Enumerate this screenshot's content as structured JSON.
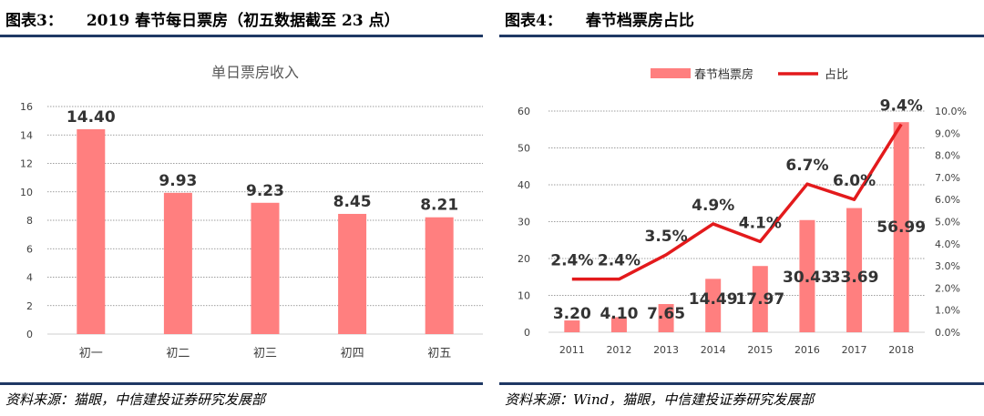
{
  "left": {
    "figure_number": "图表3：",
    "figure_title": "2019 春节每日票房（初五数据截至 23 点）",
    "source": "资料来源：猫眼，中信建投证券研究发展部"
  },
  "right": {
    "figure_number": "图表4：",
    "figure_title": "春节档票房占比",
    "source": "资料来源：Wind，猫眼，中信建投证券研究发展部"
  },
  "colors": {
    "bar": "#ff7f7f",
    "line": "#e31a1c",
    "rule": "#1f3864"
  },
  "chart_data": [
    {
      "type": "bar",
      "title": "单日票房收入",
      "categories": [
        "初一",
        "初二",
        "初三",
        "初四",
        "初五"
      ],
      "values": [
        14.4,
        9.93,
        9.23,
        8.45,
        8.21
      ],
      "value_labels": [
        "14.40",
        "9.93",
        "9.23",
        "8.45",
        "8.21"
      ],
      "ylim": [
        0,
        16
      ],
      "yticks": [
        0,
        2,
        4,
        6,
        8,
        10,
        12,
        14,
        16
      ],
      "grid": true
    },
    {
      "type": "bar",
      "categories": [
        "2011",
        "2012",
        "2013",
        "2014",
        "2015",
        "2016",
        "2017",
        "2018"
      ],
      "series": [
        {
          "name": "春节档票房",
          "type": "bar",
          "axis": "left",
          "values": [
            3.2,
            4.1,
            7.65,
            14.49,
            17.97,
            30.43,
            33.69,
            56.99
          ],
          "value_labels": [
            "3.20",
            "4.10",
            "7.65",
            "14.49",
            "17.97",
            "30.43",
            "33.69",
            "56.99"
          ]
        },
        {
          "name": "占比",
          "type": "line",
          "axis": "right",
          "values": [
            2.4,
            2.4,
            3.5,
            4.9,
            4.1,
            6.7,
            6.0,
            9.4
          ],
          "value_labels": [
            "2.4%",
            "2.4%",
            "3.5%",
            "4.9%",
            "4.1%",
            "6.7%",
            "6.0%",
            "9.4%"
          ]
        }
      ],
      "ylim": [
        0,
        60
      ],
      "yticks": [
        0,
        10,
        20,
        30,
        40,
        50,
        60
      ],
      "y2lim": [
        0,
        10
      ],
      "y2ticks": [
        "0.0%",
        "1.0%",
        "2.0%",
        "3.0%",
        "4.0%",
        "5.0%",
        "6.0%",
        "7.0%",
        "8.0%",
        "9.0%",
        "10.0%"
      ],
      "legend": "top-center",
      "grid": true
    }
  ]
}
